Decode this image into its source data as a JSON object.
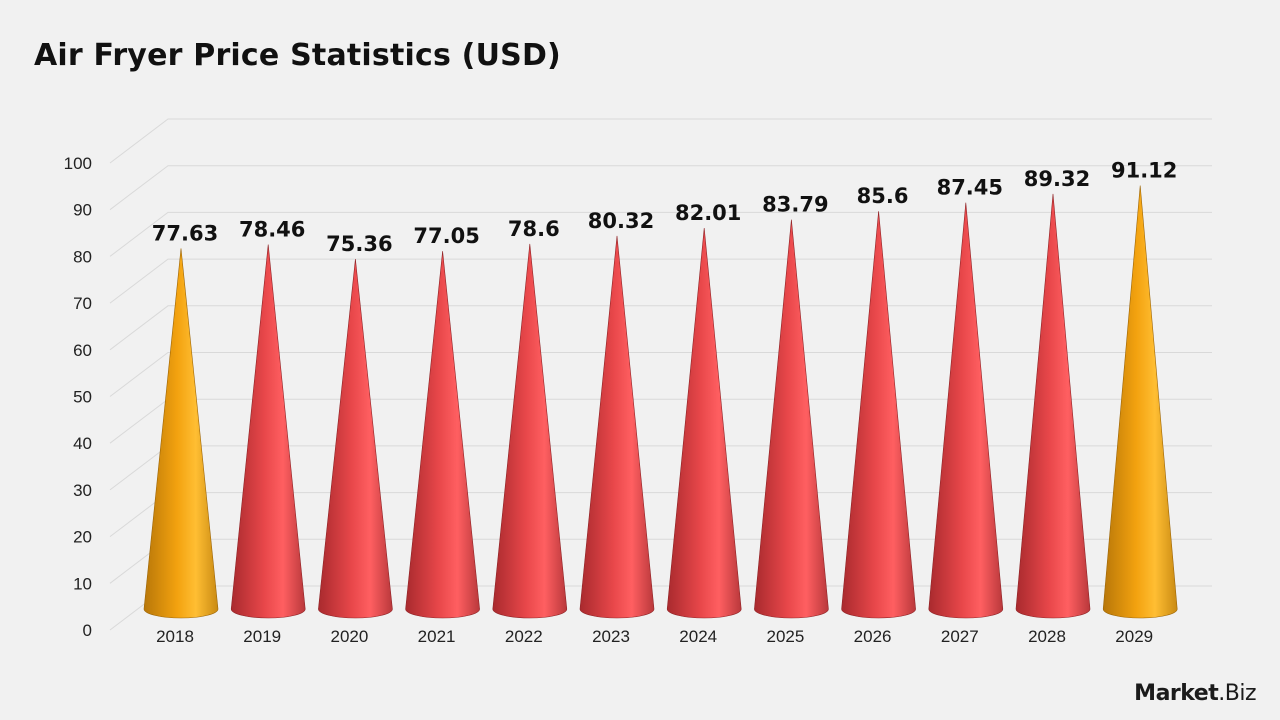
{
  "title": "Air Fryer Price Statistics (USD)",
  "logo": {
    "bold": "Market",
    "rest": ".Biz"
  },
  "colors": {
    "background": "#f1f1f1",
    "highlight": "#f5a623",
    "primary": "#e8474a",
    "grid": "#d9d9d9"
  },
  "chart_data": {
    "type": "bar",
    "bar_shape": "cone",
    "title": "Air Fryer Price Statistics (USD)",
    "xlabel": "",
    "ylabel": "",
    "ylim": [
      0,
      100
    ],
    "yticks": [
      0,
      10,
      20,
      30,
      40,
      50,
      60,
      70,
      80,
      90,
      100
    ],
    "grid": true,
    "categories": [
      "2018",
      "2019",
      "2020",
      "2021",
      "2022",
      "2023",
      "2024",
      "2025",
      "2026",
      "2027",
      "2028",
      "2029"
    ],
    "values": [
      77.63,
      78.46,
      75.36,
      77.05,
      78.6,
      80.32,
      82.01,
      83.79,
      85.6,
      87.45,
      89.32,
      91.12
    ],
    "data_labels": [
      "77.63",
      "78.46",
      "75.36",
      "77.05",
      "78.6",
      "80.32",
      "82.01",
      "83.79",
      "85.6",
      "87.45",
      "89.32",
      "91.12"
    ],
    "highlighted": [
      "2018",
      "2029"
    ]
  }
}
